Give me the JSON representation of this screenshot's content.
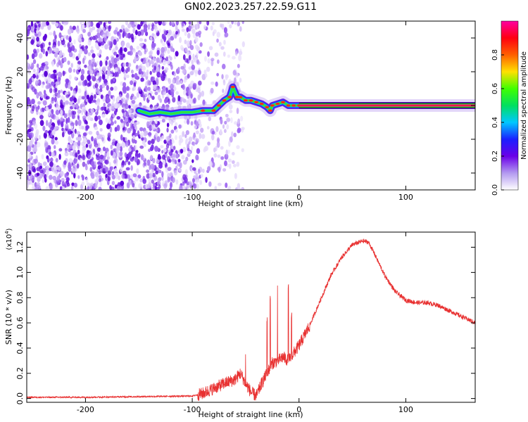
{
  "figure": {
    "title": "GN02.2023.257.22.59.G11"
  },
  "chart_data": [
    {
      "type": "heatmap",
      "name": "spectrogram",
      "title": "GN02.2023.257.22.59.G11",
      "xlabel": "Height of straight line (km)",
      "ylabel": "Frequency (Hz)",
      "xlim": [
        -255,
        165
      ],
      "ylim": [
        -50,
        50
      ],
      "xticks": [
        -200,
        -100,
        0,
        100
      ],
      "xtick_labels": [
        "-200",
        "-100",
        "0",
        "100"
      ],
      "yticks": [
        -40,
        -20,
        0,
        20,
        40
      ],
      "ytick_labels": [
        "-40",
        "-20",
        "0",
        "20",
        "40"
      ],
      "ridge": {
        "x": [
          -150,
          -140,
          -130,
          -120,
          -110,
          -100,
          -90,
          -80,
          -75,
          -70,
          -65,
          -62,
          -58,
          -55,
          -50,
          -45,
          -40,
          -35,
          -30,
          -27,
          -25,
          -20,
          -15,
          -10,
          -5,
          0,
          5,
          10,
          165
        ],
        "y": [
          -3,
          -5,
          -4,
          -5,
          -4,
          -4,
          -3,
          -3,
          0,
          3,
          5,
          11,
          5,
          5,
          3,
          3,
          2,
          1,
          -1,
          -3,
          0,
          1,
          2,
          0,
          0,
          0,
          0,
          0,
          0
        ]
      },
      "noise_region_x": [
        -255,
        -92
      ],
      "colorbar": {
        "label": "Normalized spectral amplitude",
        "range": [
          0,
          1
        ],
        "ticks": [
          0.0,
          0.2,
          0.4,
          0.6,
          0.8
        ],
        "tick_labels": [
          "0.0",
          "0.2",
          "0.4",
          "0.6",
          "0.8"
        ],
        "colors": [
          "#ffffff",
          "#b399f0",
          "#6a00e8",
          "#1a20ff",
          "#00c8ff",
          "#00e060",
          "#40ff00",
          "#ffe000",
          "#ff6000",
          "#ff0010",
          "#ff00a0"
        ]
      }
    },
    {
      "type": "line",
      "name": "snr",
      "xlabel": "Height of straight line (km)",
      "ylabel": "SNR (10 * v/v)",
      "y_multiplier": "(x10",
      "y_multiplier_exp": "4",
      "y_multiplier_close": ")",
      "xlim": [
        -255,
        165
      ],
      "ylim": [
        -0.03,
        1.32
      ],
      "xticks": [
        -200,
        -100,
        0,
        100
      ],
      "xtick_labels": [
        "-200",
        "-100",
        "0",
        "100"
      ],
      "yticks": [
        0.0,
        0.2,
        0.4,
        0.6,
        0.8,
        1.0,
        1.2
      ],
      "ytick_labels": [
        "0.0",
        "0.2",
        "0.4",
        "0.6",
        "0.8",
        "1.0",
        "1.2"
      ],
      "color": "#e83030",
      "series": [
        {
          "x": [
            -255,
            -200,
            -150,
            -100,
            -90,
            -80,
            -70,
            -60,
            -55,
            -50,
            -45,
            -40,
            -35,
            -30,
            -25,
            -20,
            -15,
            -10,
            -5,
            0,
            10,
            20,
            30,
            40,
            50,
            60,
            65,
            70,
            80,
            90,
            100,
            110,
            120,
            130,
            140,
            150,
            165
          ],
          "y": [
            0.01,
            0.01,
            0.015,
            0.02,
            0.04,
            0.08,
            0.12,
            0.15,
            0.2,
            0.12,
            0.05,
            0.02,
            0.12,
            0.2,
            0.28,
            0.3,
            0.33,
            0.3,
            0.36,
            0.42,
            0.58,
            0.78,
            0.98,
            1.12,
            1.22,
            1.25,
            1.24,
            1.16,
            0.98,
            0.85,
            0.78,
            0.76,
            0.76,
            0.74,
            0.7,
            0.66,
            0.6
          ]
        }
      ],
      "spikes": [
        {
          "x": -50,
          "y": 0.38
        },
        {
          "x": -30,
          "y": 0.65
        },
        {
          "x": -27,
          "y": 0.82
        },
        {
          "x": -20,
          "y": 0.9
        },
        {
          "x": -10,
          "y": 0.92
        },
        {
          "x": -7,
          "y": 0.7
        }
      ]
    }
  ]
}
